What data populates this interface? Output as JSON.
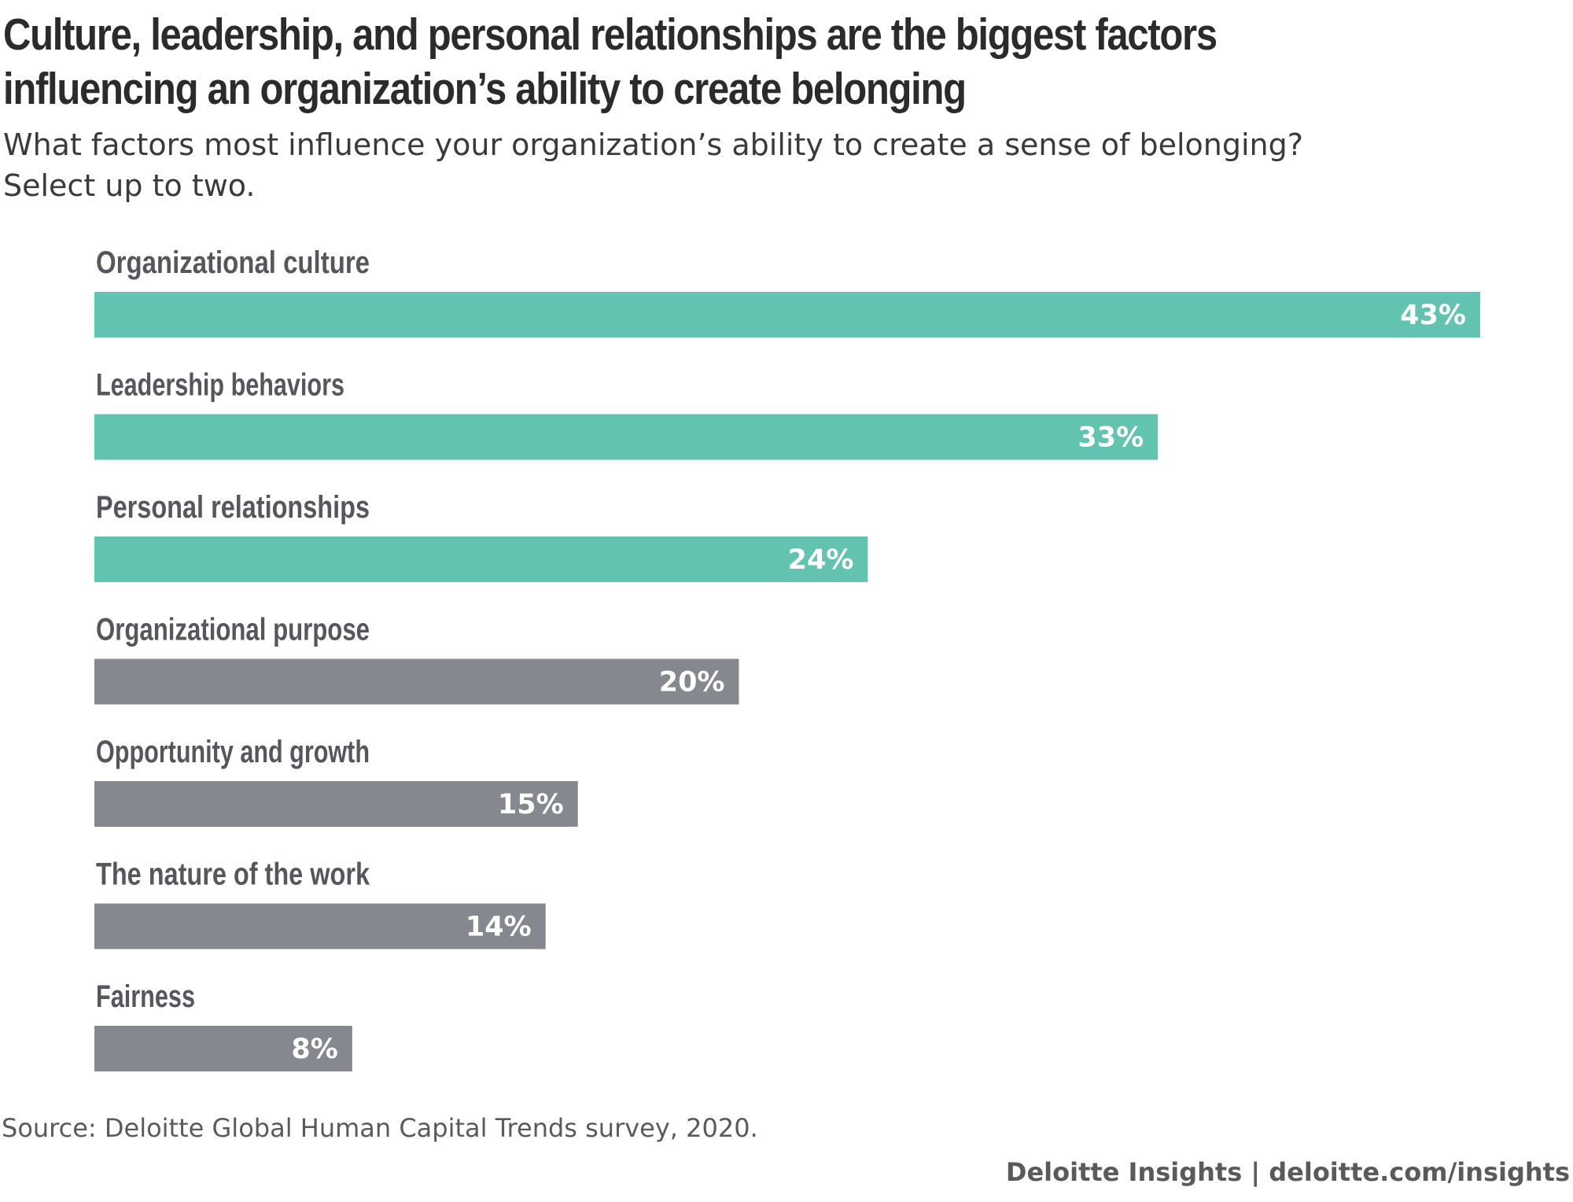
{
  "header": {
    "title_line1": "Culture, leadership, and personal relationships are the biggest factors",
    "title_line2": "influencing an organization’s ability to create belonging",
    "subtitle_line1": "What factors most influence your organization’s ability to create a sense of belonging?",
    "subtitle_line2": "Select up to two."
  },
  "chart_data": {
    "type": "bar",
    "orientation": "horizontal",
    "title": "Culture, leadership, and personal relationships are the biggest factors influencing an organization’s ability to create belonging",
    "subtitle": "What factors most influence your organization’s ability to create a sense of belonging? Select up to two.",
    "categories": [
      "Organizational culture",
      "Leadership behaviors",
      "Personal relationships",
      "Organizational purpose",
      "Opportunity and growth",
      "The nature of the work",
      "Fairness"
    ],
    "values": [
      43,
      33,
      24,
      20,
      15,
      14,
      8
    ],
    "value_labels": [
      "43%",
      "33%",
      "24%",
      "20%",
      "15%",
      "14%",
      "8%"
    ],
    "unit": "%",
    "highlighted": [
      true,
      true,
      true,
      false,
      false,
      false,
      false
    ],
    "colors": {
      "highlight": "#62c3b0",
      "default": "#86888f"
    },
    "xlim": [
      0,
      43
    ],
    "grid": false,
    "legend": "none"
  },
  "footer": {
    "source": "Source: Deloitte Global Human Capital Trends survey, 2020.",
    "credit": "Deloitte Insights | deloitte.com/insights"
  }
}
